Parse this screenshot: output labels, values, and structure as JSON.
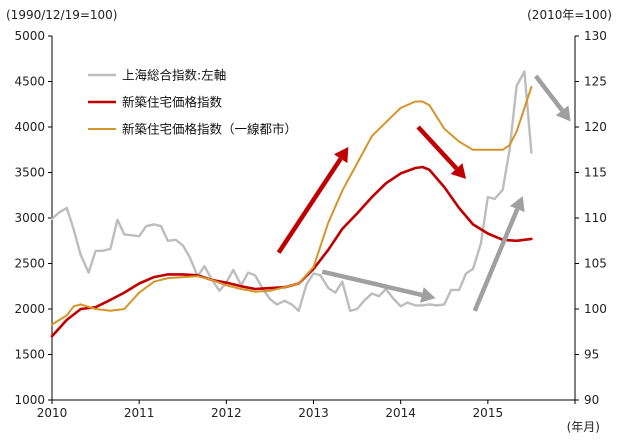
{
  "chart_data": {
    "type": "line",
    "left_axis_unit": "(1990/12/19=100)",
    "right_axis_unit": "(2010年=100)",
    "x_unit": "(年月)",
    "x_ticks": [
      "2010",
      "2011",
      "2012",
      "2013",
      "2014",
      "2015"
    ],
    "left_axis": {
      "ylim": [
        1000,
        5000
      ],
      "ticks": [
        1000,
        1500,
        2000,
        2500,
        3000,
        3500,
        4000,
        4500,
        5000
      ]
    },
    "right_axis": {
      "ylim": [
        90,
        130
      ],
      "ticks": [
        90,
        95,
        100,
        105,
        110,
        115,
        120,
        125,
        130
      ]
    },
    "legend": [
      {
        "label": "上海総合指数:左軸",
        "color": "#bdbdbd"
      },
      {
        "label": "新築住宅価格指数",
        "color": "#c00000"
      },
      {
        "label": "新築住宅価格指数（一線都市）",
        "color": "#d4952a"
      }
    ],
    "series": [
      {
        "name": "上海総合指数:左軸",
        "axis": "left",
        "color": "#bdbdbd",
        "x": [
          2010.0,
          2010.08,
          2010.17,
          2010.25,
          2010.33,
          2010.42,
          2010.5,
          2010.58,
          2010.67,
          2010.75,
          2010.83,
          2010.92,
          2011.0,
          2011.08,
          2011.17,
          2011.25,
          2011.33,
          2011.42,
          2011.5,
          2011.58,
          2011.67,
          2011.75,
          2011.83,
          2011.92,
          2012.0,
          2012.08,
          2012.17,
          2012.25,
          2012.33,
          2012.42,
          2012.5,
          2012.58,
          2012.67,
          2012.75,
          2012.83,
          2012.92,
          2013.0,
          2013.08,
          2013.17,
          2013.25,
          2013.33,
          2013.42,
          2013.5,
          2013.58,
          2013.67,
          2013.75,
          2013.83,
          2013.92,
          2014.0,
          2014.08,
          2014.17,
          2014.25,
          2014.33,
          2014.42,
          2014.5,
          2014.58,
          2014.67,
          2014.75,
          2014.83,
          2014.92,
          2015.0,
          2015.08,
          2015.17,
          2015.25,
          2015.33,
          2015.42,
          2015.5
        ],
        "values": [
          2990,
          3060,
          3110,
          2870,
          2590,
          2400,
          2640,
          2640,
          2660,
          2980,
          2820,
          2810,
          2800,
          2910,
          2930,
          2910,
          2750,
          2760,
          2700,
          2570,
          2360,
          2470,
          2330,
          2200,
          2290,
          2430,
          2260,
          2400,
          2370,
          2220,
          2110,
          2050,
          2090,
          2050,
          1980,
          2270,
          2390,
          2370,
          2230,
          2180,
          2300,
          1980,
          2000,
          2090,
          2170,
          2140,
          2220,
          2110,
          2030,
          2070,
          2040,
          2040,
          2050,
          2040,
          2050,
          2210,
          2210,
          2390,
          2440,
          2720,
          3230,
          3210,
          3310,
          3750,
          4450,
          4610,
          3720
        ]
      },
      {
        "name": "新築住宅価格指数",
        "axis": "right",
        "color": "#c00000",
        "x": [
          2010.0,
          2010.17,
          2010.33,
          2010.5,
          2010.67,
          2010.83,
          2011.0,
          2011.17,
          2011.33,
          2011.5,
          2011.67,
          2011.83,
          2012.0,
          2012.17,
          2012.33,
          2012.5,
          2012.67,
          2012.83,
          2013.0,
          2013.17,
          2013.33,
          2013.5,
          2013.67,
          2013.83,
          2014.0,
          2014.17,
          2014.25,
          2014.33,
          2014.5,
          2014.67,
          2014.83,
          2015.0,
          2015.17,
          2015.33,
          2015.5
        ],
        "values": [
          97.0,
          98.8,
          100.0,
          100.2,
          101.0,
          101.8,
          102.8,
          103.5,
          103.8,
          103.8,
          103.7,
          103.2,
          102.9,
          102.5,
          102.2,
          102.3,
          102.4,
          102.8,
          104.4,
          106.5,
          108.8,
          110.5,
          112.3,
          113.8,
          114.9,
          115.5,
          115.6,
          115.3,
          113.4,
          111.1,
          109.3,
          108.3,
          107.6,
          107.5,
          107.7
        ]
      },
      {
        "name": "新築住宅価格指数（一線都市）",
        "axis": "right",
        "color": "#d4952a",
        "x": [
          2010.0,
          2010.17,
          2010.25,
          2010.33,
          2010.5,
          2010.67,
          2010.83,
          2011.0,
          2011.17,
          2011.33,
          2011.5,
          2011.67,
          2011.83,
          2012.0,
          2012.17,
          2012.33,
          2012.5,
          2012.67,
          2012.83,
          2013.0,
          2013.17,
          2013.33,
          2013.5,
          2013.67,
          2013.83,
          2014.0,
          2014.17,
          2014.25,
          2014.33,
          2014.5,
          2014.67,
          2014.83,
          2015.0,
          2015.17,
          2015.25,
          2015.33,
          2015.5
        ],
        "values": [
          98.3,
          99.3,
          100.3,
          100.5,
          100.0,
          99.8,
          100.0,
          101.8,
          103.0,
          103.4,
          103.5,
          103.6,
          103.2,
          102.6,
          102.2,
          101.9,
          102.0,
          102.4,
          102.8,
          104.6,
          109.5,
          113.0,
          116.0,
          119.0,
          120.5,
          122.1,
          122.8,
          122.8,
          122.4,
          119.8,
          118.4,
          117.5,
          117.5,
          117.5,
          118.0,
          119.5,
          124.4
        ]
      }
    ],
    "arrows": [
      {
        "color": "#c00000",
        "from": [
          2012.6,
          2620
        ],
        "to": [
          2013.4,
          3780
        ]
      },
      {
        "color": "#c00000",
        "from": [
          2014.2,
          4000
        ],
        "to": [
          2014.75,
          3430
        ]
      },
      {
        "color": "#a0a0a0",
        "from": [
          2013.1,
          2410
        ],
        "to": [
          2014.4,
          2120
        ]
      },
      {
        "color": "#a0a0a0",
        "from": [
          2014.85,
          1980
        ],
        "to": [
          2015.4,
          3240
        ]
      },
      {
        "color": "#a0a0a0",
        "from": [
          2015.55,
          4560
        ],
        "to": [
          2015.95,
          4060
        ]
      }
    ]
  }
}
